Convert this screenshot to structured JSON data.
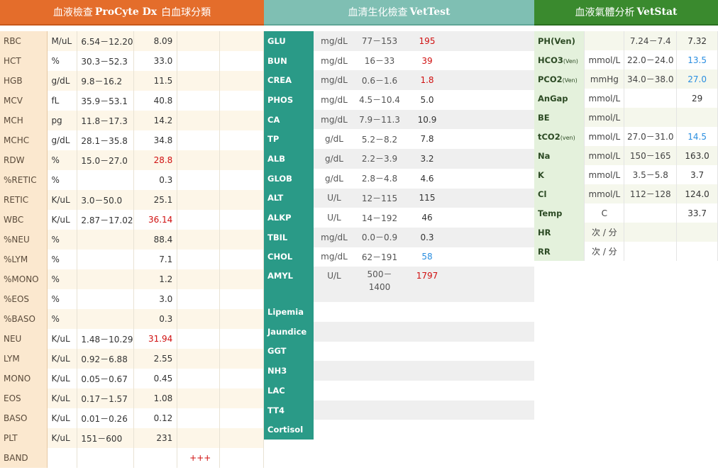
{
  "cbc": {
    "title_zh": "血液檢查",
    "title_en": "ProCyte Dx",
    "title_zh2": "白血球分類",
    "rows": [
      {
        "name": "RBC",
        "unit": "M/uL",
        "range": "6.54－12.20",
        "value": "8.09",
        "flag": ""
      },
      {
        "name": "HCT",
        "unit": "%",
        "range": "30.3－52.3",
        "value": "33.0",
        "flag": ""
      },
      {
        "name": "HGB",
        "unit": "g/dL",
        "range": "9.8－16.2",
        "value": "11.5",
        "flag": ""
      },
      {
        "name": "MCV",
        "unit": "fL",
        "range": "35.9－53.1",
        "value": "40.8",
        "flag": ""
      },
      {
        "name": "MCH",
        "unit": "pg",
        "range": "11.8－17.3",
        "value": "14.2",
        "flag": ""
      },
      {
        "name": "MCHC",
        "unit": "g/dL",
        "range": "28.1－35.8",
        "value": "34.8",
        "flag": ""
      },
      {
        "name": "RDW",
        "unit": "%",
        "range": "15.0－27.0",
        "value": "28.8",
        "flag": "high"
      },
      {
        "name": "%RETIC",
        "unit": "%",
        "range": "",
        "value": "0.3",
        "flag": ""
      },
      {
        "name": "RETIC",
        "unit": "K/uL",
        "range": "3.0－50.0",
        "value": "25.1",
        "flag": ""
      },
      {
        "name": "WBC",
        "unit": "K/uL",
        "range": "2.87－17.02",
        "value": "36.14",
        "flag": "high"
      },
      {
        "name": "%NEU",
        "unit": "%",
        "range": "",
        "value": "88.4",
        "flag": ""
      },
      {
        "name": "%LYM",
        "unit": "%",
        "range": "",
        "value": "7.1",
        "flag": ""
      },
      {
        "name": "%MONO",
        "unit": "%",
        "range": "",
        "value": "1.2",
        "flag": ""
      },
      {
        "name": "%EOS",
        "unit": "%",
        "range": "",
        "value": "3.0",
        "flag": ""
      },
      {
        "name": "%BASO",
        "unit": "%",
        "range": "",
        "value": "0.3",
        "flag": ""
      },
      {
        "name": "NEU",
        "unit": "K/uL",
        "range": "1.48－10.29",
        "value": "31.94",
        "flag": "high"
      },
      {
        "name": "LYM",
        "unit": "K/uL",
        "range": "0.92－6.88",
        "value": "2.55",
        "flag": ""
      },
      {
        "name": "MONO",
        "unit": "K/uL",
        "range": "0.05－0.67",
        "value": "0.45",
        "flag": ""
      },
      {
        "name": "EOS",
        "unit": "K/uL",
        "range": "0.17－1.57",
        "value": "1.08",
        "flag": ""
      },
      {
        "name": "BASO",
        "unit": "K/uL",
        "range": "0.01－0.26",
        "value": "0.12",
        "flag": ""
      },
      {
        "name": "PLT",
        "unit": "K/uL",
        "range": "151－600",
        "value": "231",
        "flag": ""
      },
      {
        "name": "BAND",
        "unit": "",
        "range": "",
        "value": "+++",
        "flag": "high"
      }
    ]
  },
  "chem": {
    "title_zh": "血清生化檢查",
    "title_en": "VetTest",
    "rows": [
      {
        "name": "GLU",
        "unit": "mg/dL",
        "range": "77－153",
        "value": "195",
        "flag": "high"
      },
      {
        "name": "BUN",
        "unit": "mg/dL",
        "range": "16－33",
        "value": "39",
        "flag": "high"
      },
      {
        "name": "CREA",
        "unit": "mg/dL",
        "range": "0.6－1.6",
        "value": "1.8",
        "flag": "high"
      },
      {
        "name": "PHOS",
        "unit": "mg/dL",
        "range": "4.5－10.4",
        "value": "5.0",
        "flag": ""
      },
      {
        "name": "CA",
        "unit": "mg/dL",
        "range": "7.9－11.3",
        "value": "10.9",
        "flag": ""
      },
      {
        "name": "TP",
        "unit": "g/dL",
        "range": "5.2－8.2",
        "value": "7.8",
        "flag": ""
      },
      {
        "name": "ALB",
        "unit": "g/dL",
        "range": "2.2－3.9",
        "value": "3.2",
        "flag": ""
      },
      {
        "name": "GLOB",
        "unit": "g/dL",
        "range": "2.8－4.8",
        "value": "4.6",
        "flag": ""
      },
      {
        "name": "ALT",
        "unit": "U/L",
        "range": "12－115",
        "value": "115",
        "flag": ""
      },
      {
        "name": "ALKP",
        "unit": "U/L",
        "range": "14－192",
        "value": "46",
        "flag": ""
      },
      {
        "name": "TBIL",
        "unit": "mg/dL",
        "range": "0.0－0.9",
        "value": "0.3",
        "flag": ""
      },
      {
        "name": "CHOL",
        "unit": "mg/dL",
        "range": "62－191",
        "value": "58",
        "flag": "low"
      },
      {
        "name": "AMYL",
        "unit": "U/L",
        "range": "500－\n1400",
        "value": "1797",
        "flag": "high",
        "tall": true
      },
      {
        "name": "Lipemia",
        "unit": "",
        "range": "",
        "value": "",
        "flag": ""
      },
      {
        "name": "Jaundice",
        "unit": "",
        "range": "",
        "value": "",
        "flag": ""
      },
      {
        "name": "GGT",
        "unit": "",
        "range": "",
        "value": "",
        "flag": ""
      },
      {
        "name": "NH3",
        "unit": "",
        "range": "",
        "value": "",
        "flag": ""
      },
      {
        "name": "LAC",
        "unit": "",
        "range": "",
        "value": "",
        "flag": ""
      },
      {
        "name": "TT4",
        "unit": "",
        "range": "",
        "value": "",
        "flag": ""
      },
      {
        "name": "Cortisol",
        "unit": "",
        "range": "",
        "value": "",
        "flag": ""
      }
    ]
  },
  "gas": {
    "title_zh": "血液氣體分析",
    "title_en": "VetStat",
    "rows": [
      {
        "name": "PH",
        "sub": "(Ven)",
        "sub_small": false,
        "unit": "",
        "range": "7.24－7.4",
        "value": "7.32",
        "flag": ""
      },
      {
        "name": "HCO3",
        "sub": "(Ven)",
        "sub_small": true,
        "unit": "mmol/L",
        "range": "22.0－24.0",
        "value": "13.5",
        "flag": "low"
      },
      {
        "name": "PCO2",
        "sub": "(Ven)",
        "sub_small": true,
        "unit": "mmHg",
        "range": "34.0－38.0",
        "value": "27.0",
        "flag": "low"
      },
      {
        "name": "AnGap",
        "sub": "",
        "sub_small": false,
        "unit": "mmol/L",
        "range": "",
        "value": "29",
        "flag": ""
      },
      {
        "name": "BE",
        "sub": "",
        "sub_small": false,
        "unit": "mmol/L",
        "range": "",
        "value": "",
        "flag": ""
      },
      {
        "name": "tCO2",
        "sub": "(ven)",
        "sub_small": true,
        "unit": "mmol/L",
        "range": "27.0－31.0",
        "value": "14.5",
        "flag": "low"
      },
      {
        "name": "Na",
        "sub": "",
        "sub_small": false,
        "unit": "mmol/L",
        "range": "150－165",
        "value": "163.0",
        "flag": ""
      },
      {
        "name": "K",
        "sub": "",
        "sub_small": false,
        "unit": "mmol/L",
        "range": "3.5－5.8",
        "value": "3.7",
        "flag": ""
      },
      {
        "name": "Cl",
        "sub": "",
        "sub_small": false,
        "unit": "mmol/L",
        "range": "112－128",
        "value": "124.0",
        "flag": ""
      },
      {
        "name": "Temp",
        "sub": "",
        "sub_small": false,
        "unit": "C",
        "range": "",
        "value": "33.7",
        "flag": ""
      },
      {
        "name": "HR",
        "sub": "",
        "sub_small": false,
        "unit": "次 / 分",
        "range": "",
        "value": "",
        "flag": ""
      },
      {
        "name": "RR",
        "sub": "",
        "sub_small": false,
        "unit": "次 / 分",
        "range": "",
        "value": "",
        "flag": ""
      }
    ]
  },
  "colors": {
    "cbc_header": "#e46d2b",
    "chem_header": "#7fbfb3",
    "chem_name_col": "#2a9a87",
    "gas_header": "#3a8a2e",
    "flag_high": "#d01010",
    "flag_low": "#2a8ee0"
  }
}
